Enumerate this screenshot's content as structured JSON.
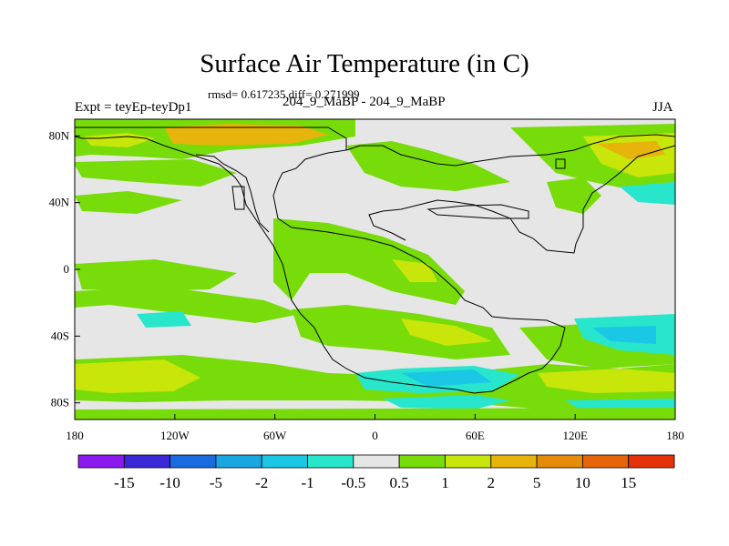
{
  "title": "Surface Air Temperature (in C)",
  "stats": "rmsd= 0.617235 diff= 0.271999",
  "expt": "Expt = teyEp-teyDp1",
  "subtitle": "204_9_MaBP - 204_9_MaBP",
  "season": "JJA",
  "map": {
    "lon_range": [
      -180,
      180
    ],
    "lat_range": [
      -90,
      90
    ],
    "x_ticks": [
      {
        "lon": -180,
        "label": "180"
      },
      {
        "lon": -120,
        "label": "120W"
      },
      {
        "lon": -60,
        "label": "60W"
      },
      {
        "lon": 0,
        "label": "0"
      },
      {
        "lon": 60,
        "label": "60E"
      },
      {
        "lon": 120,
        "label": "120E"
      },
      {
        "lon": 180,
        "label": "180"
      }
    ],
    "y_ticks": [
      {
        "lat": 80,
        "label": "80N"
      },
      {
        "lat": 40,
        "label": "40N"
      },
      {
        "lat": 0,
        "label": "0"
      },
      {
        "lat": -40,
        "label": "40S"
      },
      {
        "lat": -80,
        "label": "80S"
      }
    ],
    "background_color": "#e6e6e6"
  },
  "colorbar": {
    "colors": [
      "#8c1aee",
      "#3b28d6",
      "#1a6ae0",
      "#1aa6e0",
      "#1ac8e6",
      "#28e6cc",
      "#e6e6e6",
      "#78dc0a",
      "#c8e60a",
      "#e6b40a",
      "#e68c0a",
      "#e6640a",
      "#e6320a"
    ],
    "labels": [
      "-15",
      "-10",
      "-5",
      "-2",
      "-1",
      "-0.5",
      "0.5",
      "1",
      "2",
      "5",
      "10",
      "15"
    ]
  }
}
